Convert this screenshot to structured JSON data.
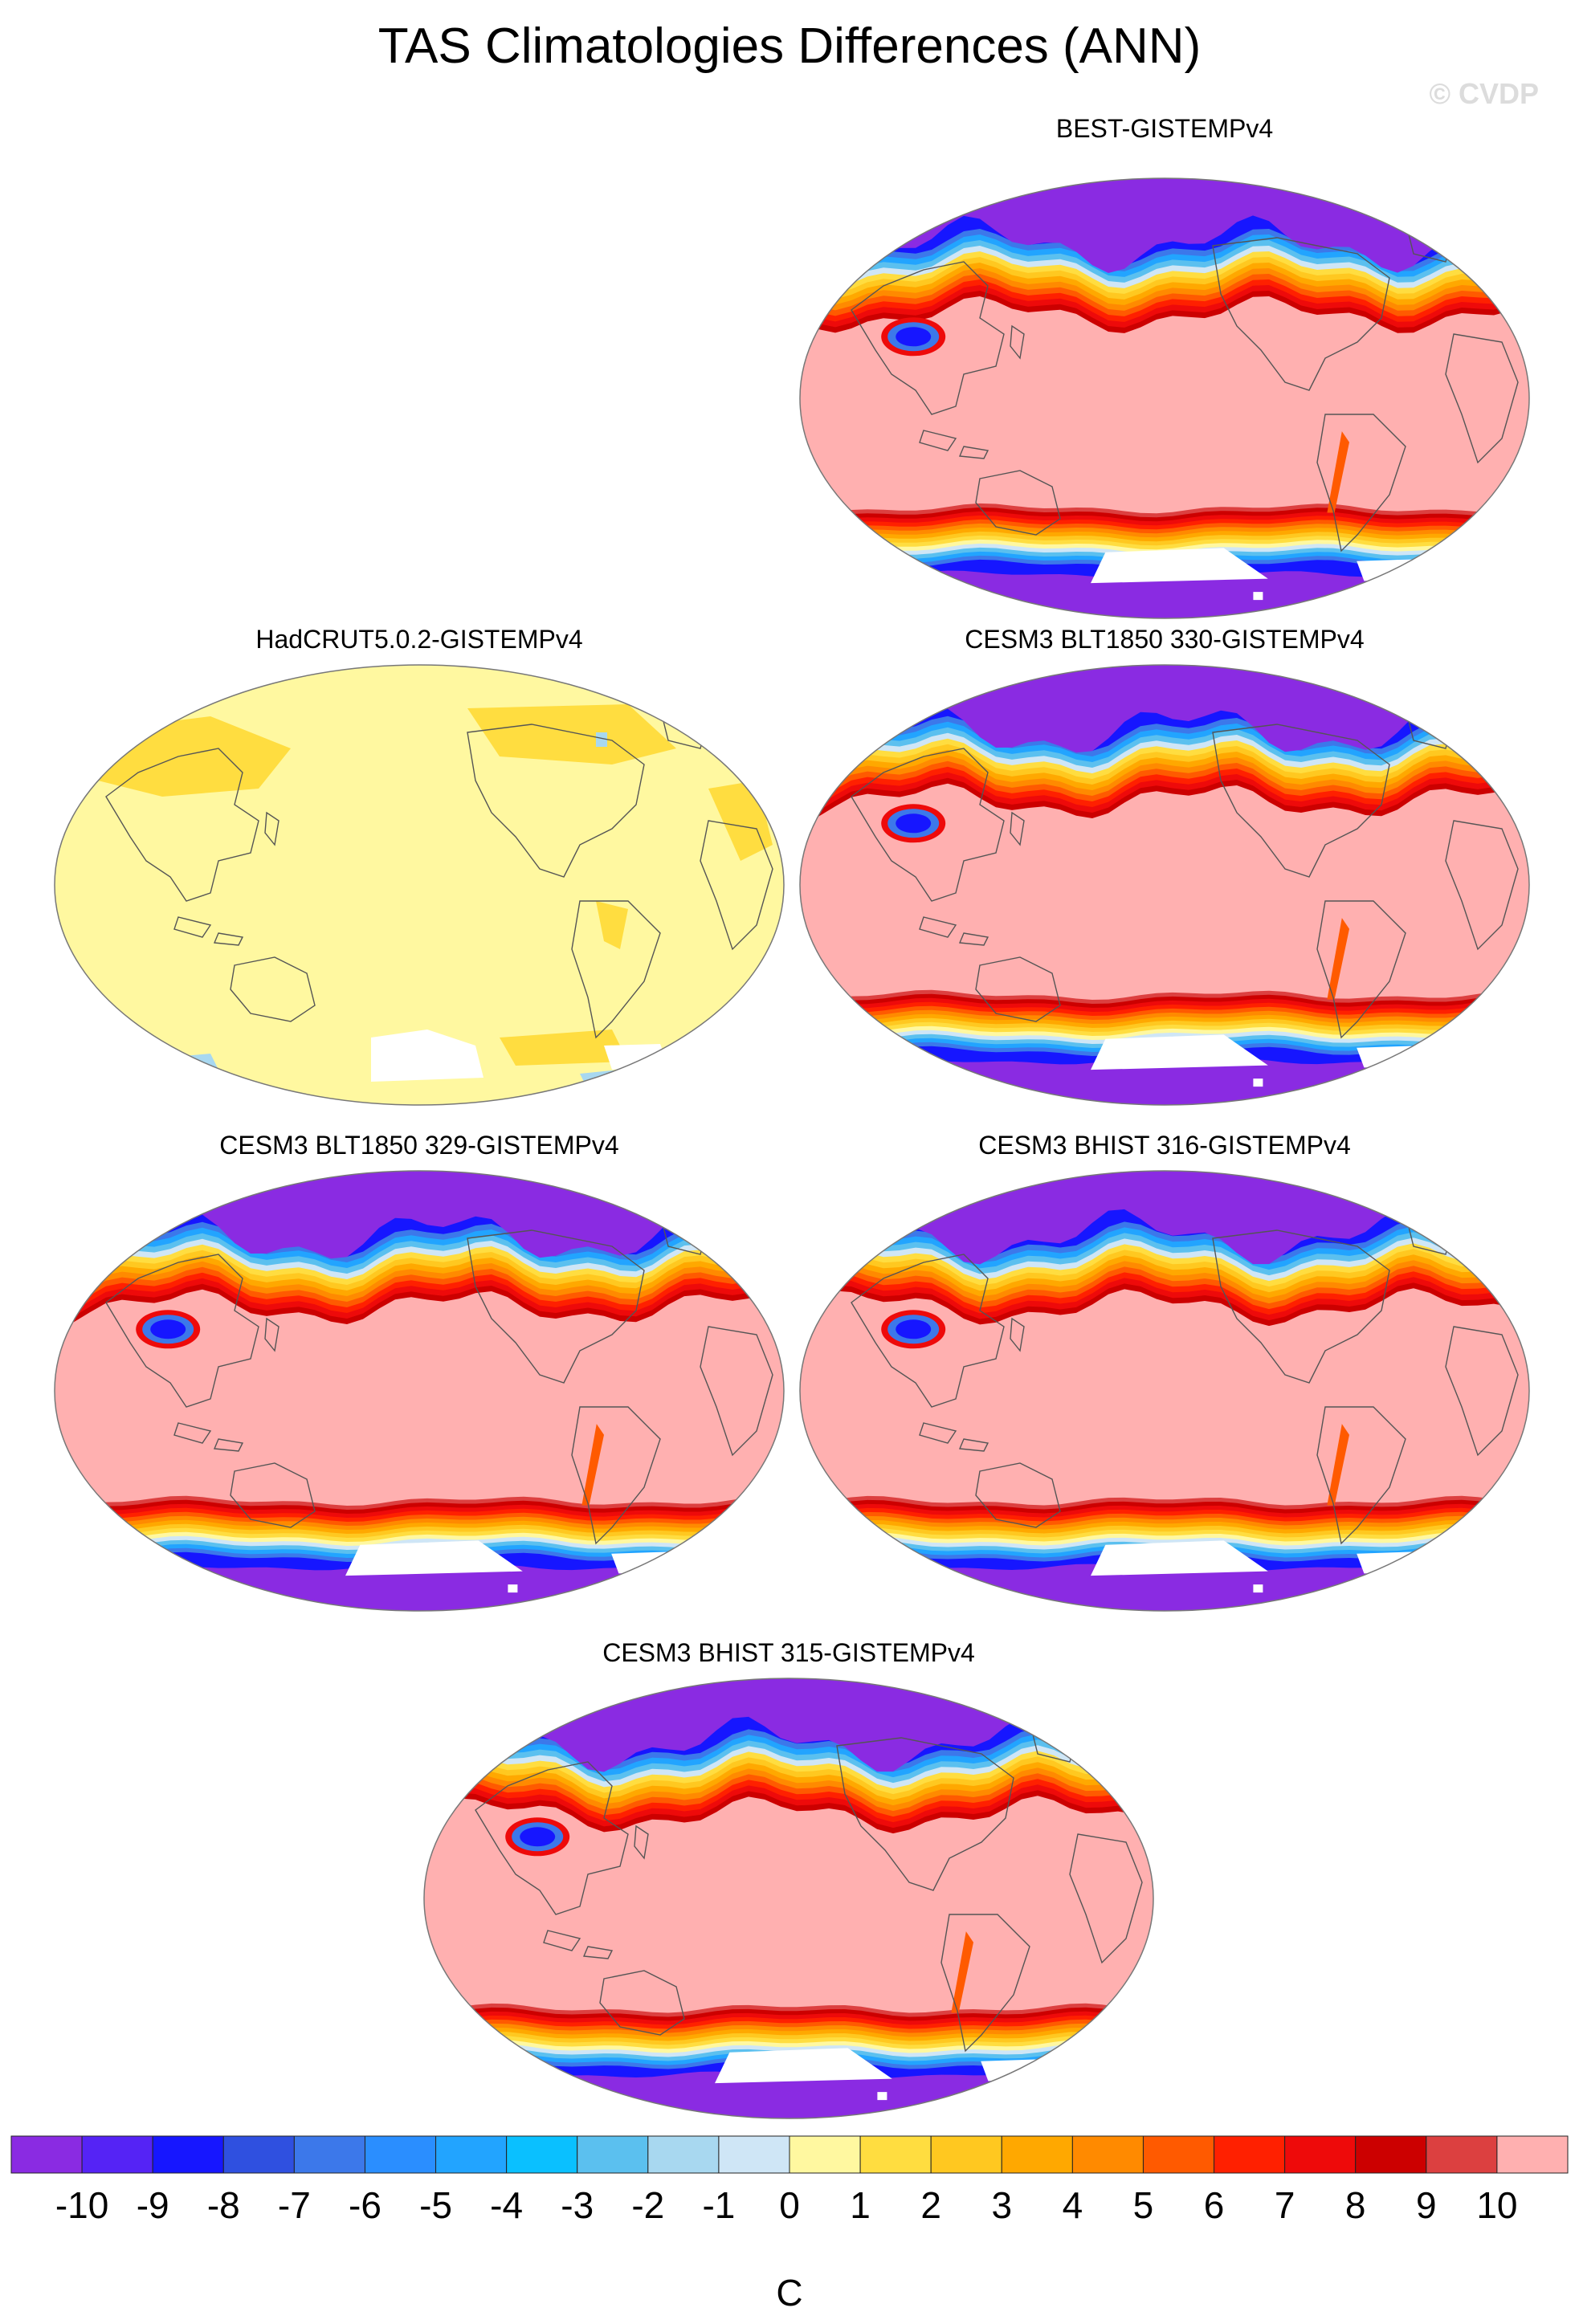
{
  "title": "TAS Climatologies Differences (ANN)",
  "watermark": "© CVDP",
  "colors": {
    "c0": "#8a2be2",
    "c1": "#5523f5",
    "c2": "#1616ff",
    "c3": "#2f50e0",
    "c4": "#3c78ea",
    "c5": "#2a8eff",
    "c6": "#22a4ff",
    "c7": "#0ac0ff",
    "c8": "#5bc0ef",
    "c9": "#a8d8f0",
    "c10": "#cfe6f6",
    "c11": "#fff8a0",
    "c12": "#ffdd40",
    "c13": "#ffc820",
    "c14": "#ffa800",
    "c15": "#ff8a00",
    "c16": "#ff5a00",
    "c17": "#ff2000",
    "c18": "#ee0a0a",
    "c19": "#cc0000",
    "c20": "#dc4040",
    "c21": "#ffb0b0"
  },
  "panels": [
    {
      "id": "best",
      "title": "BEST-GISTEMPv4",
      "style": "model"
    },
    {
      "id": "hadcrut",
      "title": "HadCRUT5.0.2-GISTEMPv4",
      "style": "obs"
    },
    {
      "id": "blt330",
      "title": "CESM3 BLT1850 330-GISTEMPv4",
      "style": "model"
    },
    {
      "id": "blt329",
      "title": "CESM3 BLT1850 329-GISTEMPv4",
      "style": "model"
    },
    {
      "id": "bhist316",
      "title": "CESM3 BHIST 316-GISTEMPv4",
      "style": "model"
    },
    {
      "id": "bhist315",
      "title": "CESM3 BHIST 315-GISTEMPv4",
      "style": "model"
    }
  ],
  "colorbar": {
    "labels": [
      "-10",
      "-9",
      "-8",
      "-7",
      "-6",
      "-5",
      "-4",
      "-3",
      "-2",
      "-1",
      "0",
      "1",
      "2",
      "3",
      "4",
      "5",
      "6",
      "7",
      "8",
      "9",
      "10"
    ],
    "unit": "C"
  }
}
